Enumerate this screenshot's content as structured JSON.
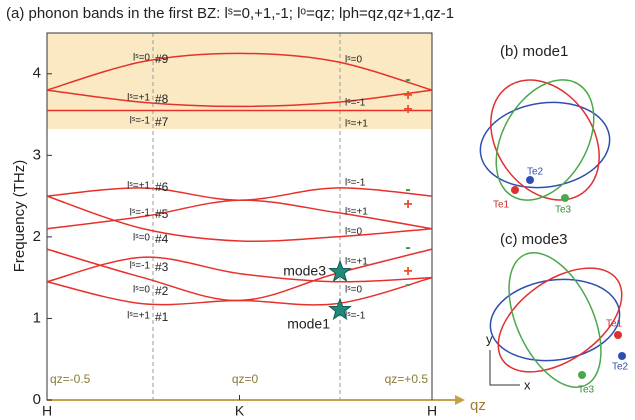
{
  "chart_data": {
    "type": "line",
    "title": "(a) phonon bands in the first BZ: lˢ=0,+1,-1; lᵒ=qz; lph=qz,qz+1,qz-1",
    "y_label": "Frequency (THz)",
    "x_label": "qz",
    "x": [
      -0.5,
      -0.25,
      0,
      0.25,
      0.5
    ],
    "xlim": [
      -0.5,
      0.5
    ],
    "xticks": [
      {
        "value": -0.5,
        "label": "H"
      },
      {
        "value": 0,
        "label": "K"
      },
      {
        "value": 0.5,
        "label": "H"
      }
    ],
    "ylim": [
      0,
      4.5
    ],
    "yticks": [
      0,
      1,
      2,
      3,
      4
    ],
    "series": [
      {
        "name": "#1",
        "color": "#e8302a",
        "values": [
          1.45,
          1.18,
          1.22,
          1.18,
          1.5
        ]
      },
      {
        "name": "#2",
        "color": "#e8302a",
        "values": [
          1.85,
          1.5,
          1.22,
          1.55,
          1.85
        ]
      },
      {
        "name": "#3",
        "color": "#e8302a",
        "values": [
          1.45,
          1.75,
          1.55,
          1.45,
          1.5
        ]
      },
      {
        "name": "#4",
        "color": "#e8302a",
        "values": [
          2.5,
          2.1,
          1.95,
          2.0,
          2.1
        ]
      },
      {
        "name": "#5",
        "color": "#e8302a",
        "values": [
          2.1,
          2.25,
          2.45,
          2.3,
          2.1
        ]
      },
      {
        "name": "#6",
        "color": "#e8302a",
        "values": [
          2.5,
          2.6,
          2.45,
          2.6,
          2.5
        ]
      },
      {
        "name": "#7",
        "color": "#e8302a",
        "values": [
          3.55,
          3.55,
          3.55,
          3.55,
          3.55
        ]
      },
      {
        "name": "#8",
        "color": "#e8302a",
        "values": [
          3.8,
          3.65,
          3.6,
          3.65,
          3.8
        ]
      },
      {
        "name": "#9",
        "color": "#e8302a",
        "values": [
          3.8,
          4.15,
          4.25,
          4.15,
          3.8
        ]
      }
    ],
    "left_labels": [
      "lˢ=+1",
      "lˢ=0",
      "lˢ=-1",
      "lˢ=0",
      "lˢ=-1",
      "lˢ=+1",
      "lˢ=-1",
      "lˢ=+1",
      "lˢ=0"
    ],
    "right_labels": [
      "lˢ=-1",
      "lˢ=0",
      "lˢ=+1",
      "lˢ=0",
      "lˢ=+1",
      "lˢ=-1",
      "lˢ=+1",
      "lˢ=-1",
      "lˢ=0"
    ],
    "signs": [
      "-",
      "+",
      "-",
      "+",
      "-",
      "+",
      "+",
      "-"
    ],
    "modes": [
      "mode1",
      "mode3"
    ],
    "q_labels": [
      "qz=-0.5",
      "qz=0",
      "qz=+0.5"
    ]
  },
  "insets": {
    "b": {
      "title": "(b) mode1",
      "atoms": [
        "Te1",
        "Te2",
        "Te3"
      ]
    },
    "c": {
      "title": "(c) mode3",
      "atoms": [
        "Te1",
        "Te2",
        "Te3"
      ],
      "axes": [
        "y",
        "x"
      ]
    }
  }
}
